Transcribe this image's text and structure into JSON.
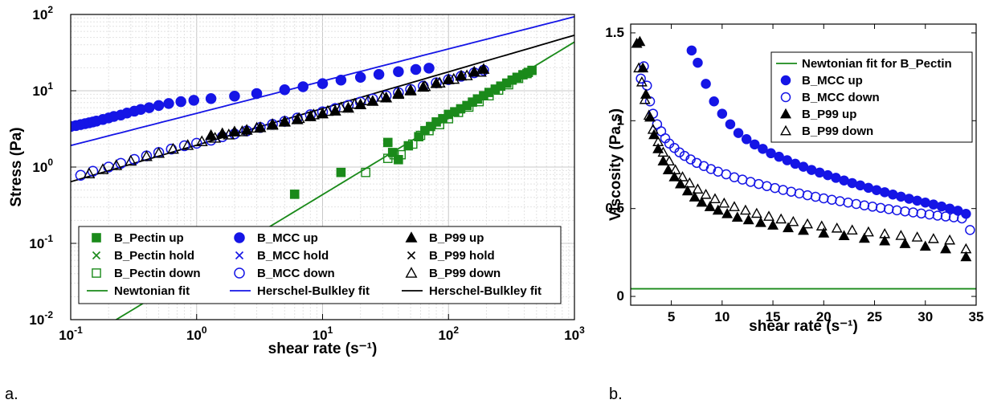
{
  "panel_labels": {
    "a": "a.",
    "b": "b."
  },
  "chart_data": [
    {
      "type": "scatter",
      "scale": "log-log",
      "xlabel": "shear rate (s⁻¹)",
      "ylabel": "Stress (Pa)",
      "xlim": [
        0.1,
        1000
      ],
      "ylim": [
        0.01,
        100
      ],
      "x_ticks": [
        0.1,
        1,
        10,
        100,
        1000
      ],
      "x_tick_labels": [
        {
          "base": "10",
          "exp": "-1"
        },
        {
          "base": "10",
          "exp": "0"
        },
        {
          "base": "10",
          "exp": "1"
        },
        {
          "base": "10",
          "exp": "2"
        },
        {
          "base": "10",
          "exp": "3"
        }
      ],
      "y_ticks": [
        0.01,
        0.1,
        1,
        10,
        100
      ],
      "y_tick_labels": [
        {
          "base": "10",
          "exp": "-2"
        },
        {
          "base": "10",
          "exp": "-1"
        },
        {
          "base": "10",
          "exp": "0"
        },
        {
          "base": "10",
          "exp": "1"
        },
        {
          "base": "10",
          "exp": "2"
        }
      ],
      "grid": true,
      "legend_position": "bottom",
      "colors": {
        "pectin": "#1a8a1a",
        "mcc": "#1515e6",
        "p99": "#000000"
      },
      "series": [
        {
          "name": "B_Pectin up",
          "marker": "square-filled",
          "color": "#1a8a1a",
          "x": [
            6,
            14,
            33,
            36,
            40,
            48,
            58,
            65,
            72,
            80,
            90,
            100,
            112,
            125,
            140,
            155,
            170,
            190,
            210,
            235,
            260,
            290,
            320,
            350,
            390,
            430,
            460
          ],
          "y": [
            0.44,
            0.85,
            2.1,
            1.55,
            1.25,
            1.9,
            2.5,
            3.0,
            3.4,
            3.9,
            4.3,
            4.9,
            5.3,
            5.8,
            6.4,
            7.1,
            7.8,
            8.6,
            9.5,
            10.5,
            11.5,
            12.6,
            13.8,
            15.0,
            16.2,
            17.4,
            18.5
          ]
        },
        {
          "name": "B_Pectin hold",
          "marker": "x",
          "color": "#1a8a1a",
          "x": [],
          "y": []
        },
        {
          "name": "B_Pectin down",
          "marker": "square-open",
          "color": "#1a8a1a",
          "x": [
            22,
            33,
            37,
            42,
            52,
            60,
            70,
            85,
            100,
            120,
            145,
            175,
            210,
            250,
            300,
            360,
            420
          ],
          "y": [
            0.85,
            1.3,
            1.45,
            1.45,
            2.0,
            2.6,
            3.0,
            3.6,
            4.3,
            5.2,
            6.1,
            7.2,
            8.6,
            10.2,
            12.0,
            14.5,
            16.8
          ]
        },
        {
          "name": "B_MCC up",
          "marker": "circle-filled",
          "color": "#1515e6",
          "x": [
            0.1,
            0.11,
            0.12,
            0.13,
            0.14,
            0.15,
            0.16,
            0.18,
            0.2,
            0.22,
            0.25,
            0.28,
            0.32,
            0.36,
            0.42,
            0.5,
            0.6,
            0.75,
            0.95,
            1.3,
            2.0,
            3.0,
            5.0,
            7.0,
            10,
            14,
            20,
            28,
            40,
            55,
            70
          ],
          "y": [
            3.4,
            3.5,
            3.6,
            3.7,
            3.8,
            3.9,
            4.0,
            4.2,
            4.4,
            4.6,
            4.8,
            5.1,
            5.4,
            5.7,
            6.0,
            6.4,
            6.8,
            7.2,
            7.5,
            7.9,
            8.5,
            9.2,
            10.3,
            11.3,
            12.4,
            13.8,
            15.0,
            16.4,
            17.8,
            19.0,
            19.8
          ]
        },
        {
          "name": "B_MCC hold",
          "marker": "x",
          "color": "#1515e6",
          "x": [],
          "y": []
        },
        {
          "name": "B_MCC down",
          "marker": "circle-open",
          "color": "#1515e6",
          "x": [
            0.12,
            0.15,
            0.2,
            0.25,
            0.32,
            0.4,
            0.5,
            0.63,
            0.8,
            1.0,
            1.3,
            1.6,
            2.0,
            2.5,
            3.2,
            4.0,
            5.0,
            6.3,
            8.0,
            10,
            12.6,
            16,
            20,
            25,
            32,
            40,
            50,
            63,
            80,
            100,
            126,
            160,
            190
          ],
          "y": [
            0.78,
            0.88,
            1.0,
            1.12,
            1.26,
            1.4,
            1.55,
            1.72,
            1.9,
            2.05,
            2.25,
            2.5,
            2.72,
            2.98,
            3.3,
            3.62,
            3.97,
            4.38,
            4.85,
            5.3,
            5.85,
            6.45,
            7.1,
            7.8,
            8.6,
            9.45,
            10.4,
            11.5,
            12.7,
            14.0,
            15.5,
            17.2,
            18.6
          ]
        },
        {
          "name": "B_P99 up",
          "marker": "triangle-filled",
          "color": "#000000",
          "x": [
            1.3,
            1.6,
            2.0,
            2.5,
            3.2,
            4.0,
            5.0,
            6.3,
            8.0,
            10,
            12.6,
            16,
            20,
            25,
            32,
            40,
            50,
            63,
            80,
            100,
            126,
            160,
            190
          ],
          "y": [
            2.6,
            2.75,
            2.9,
            3.05,
            3.3,
            3.55,
            3.9,
            4.2,
            4.6,
            5.0,
            5.45,
            5.95,
            6.6,
            7.3,
            8.1,
            9.0,
            10.0,
            11.2,
            12.5,
            14.0,
            15.7,
            17.6,
            19.2
          ]
        },
        {
          "name": "B_P99 hold",
          "marker": "x",
          "color": "#000000",
          "x": [],
          "y": []
        },
        {
          "name": "B_P99 down",
          "marker": "triangle-open",
          "color": "#000000",
          "x": [
            0.14,
            0.18,
            0.23,
            0.3,
            0.4,
            0.5,
            0.65,
            0.85,
            1.1,
            1.4,
            1.8,
            2.3,
            3.0,
            4.0,
            5.0,
            6.5,
            8.5,
            11,
            14,
            18,
            23,
            30,
            40,
            50,
            65,
            85,
            110,
            140,
            180
          ],
          "y": [
            0.82,
            0.93,
            1.05,
            1.2,
            1.38,
            1.52,
            1.72,
            1.93,
            2.16,
            2.4,
            2.65,
            2.92,
            3.25,
            3.62,
            3.95,
            4.35,
            4.85,
            5.4,
            6.0,
            6.7,
            7.45,
            8.3,
            9.3,
            10.2,
            11.4,
            12.7,
            14.2,
            15.8,
            17.6
          ]
        },
        {
          "name": "Newtonian fit",
          "kind": "line",
          "color": "#1a8a1a",
          "k": 0.0435,
          "n": 1.0
        },
        {
          "name": "Herschel-Bulkley fit",
          "kind": "line",
          "color": "#1515e6",
          "k": 5.06,
          "n": 0.422
        },
        {
          "name": "Herschel-Bulkley fit",
          "kind": "line",
          "color": "#000000",
          "k": 1.94,
          "n": 0.48
        }
      ],
      "legend": [
        [
          "B_Pectin up",
          "B_MCC up",
          "B_P99 up"
        ],
        [
          "B_Pectin hold",
          "B_MCC hold",
          "B_P99 hold"
        ],
        [
          "B_Pectin down",
          "B_MCC down",
          "B_P99 down"
        ],
        [
          "Newtonian fit",
          "Herschel-Bulkley fit",
          "Herschel-Bulkley fit"
        ]
      ]
    },
    {
      "type": "scatter",
      "xlabel": "shear rate (s⁻¹)",
      "ylabel": "Viscosity (Pa.s)",
      "xlim": [
        1,
        35
      ],
      "ylim": [
        -0.05,
        1.55
      ],
      "x_ticks": [
        5,
        10,
        15,
        20,
        25,
        30,
        35
      ],
      "x_tick_labels": [
        "5",
        "10",
        "15",
        "20",
        "25",
        "30",
        "35"
      ],
      "y_ticks": [
        0,
        0.5,
        1,
        1.5
      ],
      "y_tick_labels": [
        "0",
        "0.5",
        "1",
        "1.5"
      ],
      "grid": false,
      "legend_position": "top-right",
      "series": [
        {
          "name": "Newtonian fit for B_Pectin",
          "kind": "hline",
          "color": "#1a8a1a",
          "value": 0.0435
        },
        {
          "name": "B_MCC up",
          "marker": "circle-filled",
          "color": "#1515e6",
          "x": [
            7.0,
            7.6,
            8.4,
            9.2,
            10.0,
            10.8,
            11.6,
            12.4,
            13.2,
            14.0,
            14.8,
            15.6,
            16.4,
            17.2,
            18.0,
            18.8,
            19.6,
            20.4,
            21.2,
            22.0,
            22.8,
            23.6,
            24.4,
            25.2,
            26.0,
            26.8,
            27.6,
            28.4,
            29.2,
            30.0,
            30.8,
            31.6,
            32.4,
            33.2,
            34.0
          ],
          "y": [
            1.4,
            1.33,
            1.21,
            1.11,
            1.04,
            0.98,
            0.93,
            0.895,
            0.865,
            0.84,
            0.815,
            0.795,
            0.775,
            0.755,
            0.738,
            0.72,
            0.705,
            0.69,
            0.675,
            0.66,
            0.645,
            0.632,
            0.618,
            0.605,
            0.593,
            0.58,
            0.568,
            0.556,
            0.545,
            0.534,
            0.523,
            0.512,
            0.5,
            0.488,
            0.47
          ]
        },
        {
          "name": "B_MCC down",
          "marker": "circle-open",
          "color": "#1515e6",
          "x": [
            2.0,
            2.3,
            2.6,
            2.9,
            3.2,
            3.6,
            4.0,
            4.4,
            4.8,
            5.3,
            5.8,
            6.3,
            6.9,
            7.5,
            8.2,
            8.9,
            9.6,
            10.4,
            11.2,
            12.0,
            12.8,
            13.6,
            14.4,
            15.2,
            16.0,
            16.8,
            17.6,
            18.4,
            19.2,
            20.0,
            20.8,
            21.6,
            22.4,
            23.2,
            24.0,
            24.8,
            25.6,
            26.4,
            27.2,
            28.0,
            28.8,
            29.6,
            30.4,
            31.2,
            32.0,
            32.8,
            33.6,
            34.4
          ],
          "y": [
            1.24,
            1.31,
            1.2,
            1.11,
            1.04,
            0.98,
            0.94,
            0.9,
            0.87,
            0.845,
            0.82,
            0.8,
            0.78,
            0.76,
            0.742,
            0.725,
            0.71,
            0.695,
            0.678,
            0.665,
            0.652,
            0.64,
            0.628,
            0.617,
            0.606,
            0.596,
            0.586,
            0.576,
            0.567,
            0.558,
            0.55,
            0.542,
            0.534,
            0.526,
            0.518,
            0.511,
            0.504,
            0.497,
            0.49,
            0.484,
            0.478,
            0.472,
            0.466,
            0.46,
            0.455,
            0.45,
            0.444,
            0.378
          ]
        },
        {
          "name": "B_P99 up",
          "marker": "triangle-filled",
          "color": "#000000",
          "x": [
            1.6,
            1.9,
            2.2,
            2.5,
            2.9,
            3.3,
            3.7,
            4.2,
            4.7,
            5.3,
            5.9,
            6.6,
            7.3,
            8.0,
            8.8,
            9.6,
            10.5,
            11.5,
            12.6,
            13.8,
            15.0,
            16.5,
            18.0,
            20.0,
            22.0,
            24.0,
            26.0,
            28.0,
            30.0,
            32.0,
            34.0
          ],
          "y": [
            1.44,
            1.45,
            1.3,
            1.15,
            1.02,
            0.92,
            0.84,
            0.77,
            0.72,
            0.68,
            0.64,
            0.6,
            0.565,
            0.535,
            0.51,
            0.49,
            0.47,
            0.45,
            0.435,
            0.42,
            0.405,
            0.39,
            0.375,
            0.36,
            0.345,
            0.33,
            0.315,
            0.3,
            0.285,
            0.27,
            0.225
          ]
        },
        {
          "name": "B_P99 down",
          "marker": "triangle-open",
          "color": "#000000",
          "x": [
            1.8,
            2.1,
            2.4,
            2.8,
            3.2,
            3.7,
            4.2,
            4.8,
            5.4,
            6.1,
            6.8,
            7.6,
            8.4,
            9.3,
            10.2,
            11.2,
            12.3,
            13.4,
            14.6,
            15.8,
            17.0,
            18.4,
            19.8,
            21.3,
            22.8,
            24.4,
            26.0,
            27.6,
            29.2,
            30.8,
            32.4,
            34.0
          ],
          "y": [
            1.3,
            1.22,
            1.12,
            1.03,
            0.95,
            0.88,
            0.82,
            0.77,
            0.72,
            0.68,
            0.645,
            0.61,
            0.58,
            0.555,
            0.53,
            0.51,
            0.49,
            0.472,
            0.455,
            0.44,
            0.425,
            0.412,
            0.4,
            0.388,
            0.377,
            0.366,
            0.356,
            0.346,
            0.337,
            0.328,
            0.32,
            0.27
          ]
        }
      ],
      "legend": [
        "Newtonian fit for B_Pectin",
        "B_MCC up",
        "B_MCC down",
        "B_P99 up",
        "B_P99 down"
      ]
    }
  ]
}
